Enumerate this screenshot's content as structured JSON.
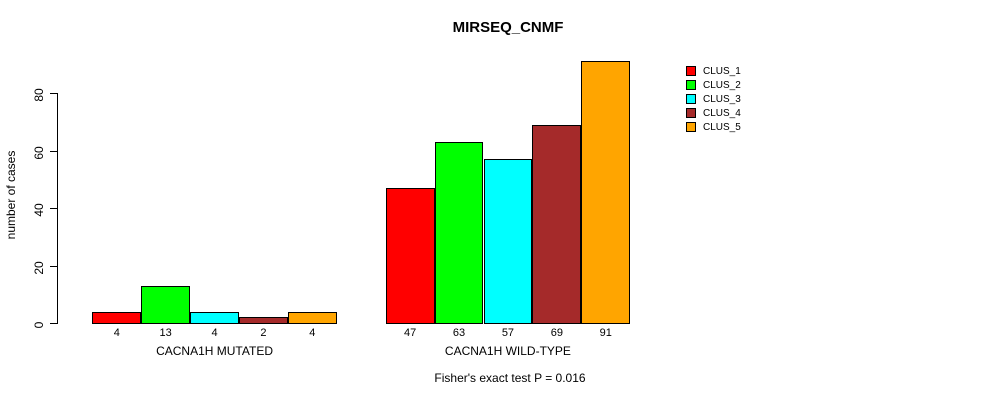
{
  "title": "MIRSEQ_CNMF",
  "chart_data": {
    "type": "bar",
    "title": "MIRSEQ_CNMF",
    "xlabel": "",
    "ylabel": "number of cases",
    "ylim": [
      0,
      91
    ],
    "yticks": [
      0,
      20,
      40,
      60,
      80
    ],
    "grid": false,
    "legend_position": "right-outside-top",
    "categories": [
      "CACNA1H MUTATED",
      "CACNA1H WILD-TYPE"
    ],
    "groups": [
      {
        "label": "CACNA1H MUTATED",
        "values": [
          4,
          13,
          4,
          2,
          4
        ]
      },
      {
        "label": "CACNA1H WILD-TYPE",
        "values": [
          47,
          63,
          57,
          69,
          91
        ]
      }
    ],
    "series": [
      {
        "name": "CLUS_1",
        "color": "#FF0000",
        "values": [
          4,
          47
        ]
      },
      {
        "name": "CLUS_2",
        "color": "#00FF00",
        "values": [
          13,
          63
        ]
      },
      {
        "name": "CLUS_3",
        "color": "#00FFFF",
        "values": [
          4,
          57
        ]
      },
      {
        "name": "CLUS_4",
        "color": "#A52A2A",
        "values": [
          2,
          69
        ]
      },
      {
        "name": "CLUS_5",
        "color": "#FFA500",
        "values": [
          4,
          91
        ]
      }
    ],
    "bar_value_labels": [
      [
        "4",
        "13",
        "4",
        "2",
        "4"
      ],
      [
        "47",
        "63",
        "57",
        "69",
        "91"
      ]
    ],
    "annotation": "Fisher's exact test P = 0.016"
  },
  "colors": {
    "background": "#FFFFFF",
    "axis": "#000000",
    "text": "#000000",
    "bar_border": "#000000"
  }
}
